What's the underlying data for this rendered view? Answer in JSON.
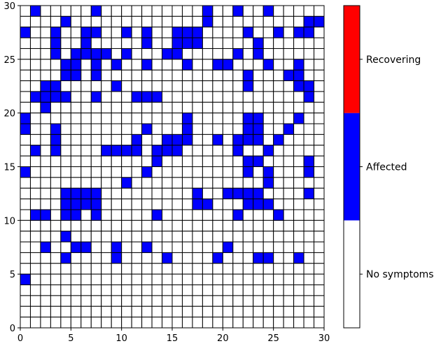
{
  "chart_data": {
    "type": "heatmap",
    "title": "",
    "xlabel": "",
    "ylabel": "",
    "xlim": [
      0,
      30
    ],
    "ylim": [
      0,
      30
    ],
    "x_ticks": [
      "0",
      "5",
      "10",
      "15",
      "20",
      "25",
      "30"
    ],
    "y_ticks": [
      "0",
      "5",
      "10",
      "15",
      "20",
      "25",
      "30"
    ],
    "grid_size": [
      30,
      30
    ],
    "state_colors": {
      "0": "#ffffff",
      "1": "#0000ff",
      "2": "#ff0000"
    },
    "colorbar": {
      "labels": [
        "No symptoms",
        "Affected",
        "Recovering"
      ],
      "colors": [
        "#ffffff",
        "#0000ff",
        "#ff0000"
      ],
      "placement": "right"
    },
    "rows_top_to_bottom": [
      "010000010000000000100100100000",
      "000010000000000000100000000011",
      "100100110010100111000010010110",
      "000100100000100111000001000000",
      "000101111010001100000101000000",
      "000011010100100010011000100100",
      "000011010000000000000010001100",
      "001100000100000000000010000110",
      "011110010001110000000000000010",
      "001000000000000000000000000000",
      "100000000000000010000011000100",
      "100100000000100010000011001000",
      "000100000001001110010111010000",
      "010100001111011100000100100000",
      "000000000000010000000011000010",
      "100000000000100000000010100010",
      "000000000010000000000000100000",
      "000011110000000001001111000010",
      "000011110000000001100011100000",
      "011011010000010000000100010000",
      "000000000000000000000000000000",
      "000010000000000000000000000000",
      "001001100100100000001000000000",
      "000010000100001000010001100100",
      "000000000000000000000000000000",
      "100000000000000000000000000000",
      "000000000000000000000000000000",
      "000000000000000000000000000000",
      "000000000000000000000000000000",
      "000000000000000000000000000000"
    ]
  }
}
